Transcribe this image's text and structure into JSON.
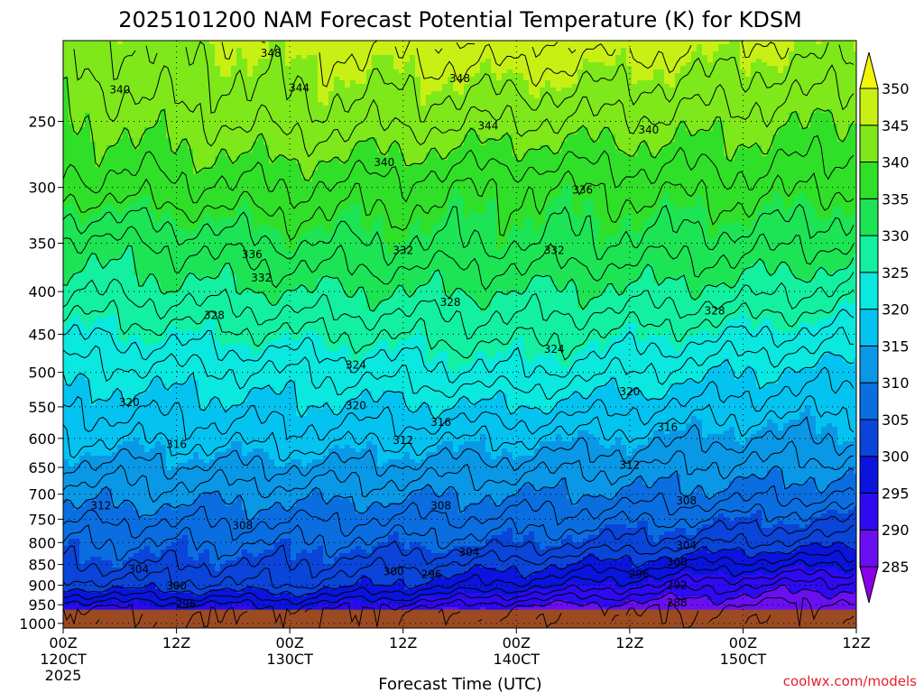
{
  "chart_data": {
    "type": "contour",
    "title": "2025101200 NAM Forecast Potential Temperature (K) for KDSM",
    "xlabel": "Forecast Time (UTC)",
    "ylabel": "",
    "x_ticks": [
      {
        "hour": 0,
        "lines": [
          "00Z",
          "120CT",
          "2025"
        ]
      },
      {
        "hour": 12,
        "lines": [
          "12Z"
        ]
      },
      {
        "hour": 24,
        "lines": [
          "00Z",
          "130CT"
        ]
      },
      {
        "hour": 36,
        "lines": [
          "12Z"
        ]
      },
      {
        "hour": 48,
        "lines": [
          "00Z",
          "140CT"
        ]
      },
      {
        "hour": 60,
        "lines": [
          "12Z"
        ]
      },
      {
        "hour": 72,
        "lines": [
          "00Z",
          "150CT"
        ]
      },
      {
        "hour": 84,
        "lines": [
          "12Z"
        ]
      }
    ],
    "x_range_hours": [
      0,
      84
    ],
    "y_ticks": [
      250,
      300,
      350,
      400,
      450,
      500,
      550,
      600,
      650,
      700,
      750,
      800,
      850,
      900,
      950,
      1000
    ],
    "y_range_hPa": [
      200,
      1013
    ],
    "y_axis_scale": "log-pressure (inverted)",
    "surface_pressure_hPa": 963,
    "grid": true,
    "colorbar": {
      "levels": [
        285,
        290,
        295,
        300,
        305,
        310,
        315,
        320,
        325,
        330,
        335,
        340,
        345,
        350
      ],
      "colors": [
        "#8a00e6",
        "#6a0ff0",
        "#2d0af0",
        "#0a14dc",
        "#0a44d8",
        "#0a6ee0",
        "#0a98e6",
        "#04c3f0",
        "#0ae8e0",
        "#12f0a0",
        "#1ce454",
        "#30e028",
        "#7ee81a",
        "#c8f014",
        "#f4f408"
      ],
      "placement": "right"
    },
    "contour_labels": [
      "348",
      "344",
      "340",
      "336",
      "332",
      "328",
      "324",
      "320",
      "316",
      "312",
      "308",
      "304",
      "300",
      "296",
      "292",
      "288"
    ],
    "theta_profiles": [
      {
        "hour": 0,
        "points": [
          [
            963,
            293
          ],
          [
            900,
            301
          ],
          [
            850,
            304
          ],
          [
            800,
            306
          ],
          [
            700,
            311
          ],
          [
            600,
            316
          ],
          [
            500,
            321
          ],
          [
            400,
            328
          ],
          [
            350,
            331
          ],
          [
            300,
            337
          ],
          [
            250,
            340
          ],
          [
            200,
            343
          ]
        ]
      },
      {
        "hour": 24,
        "points": [
          [
            963,
            295
          ],
          [
            900,
            302
          ],
          [
            850,
            304
          ],
          [
            800,
            306
          ],
          [
            700,
            311
          ],
          [
            600,
            317
          ],
          [
            500,
            322
          ],
          [
            400,
            330
          ],
          [
            350,
            334
          ],
          [
            300,
            338
          ],
          [
            250,
            343
          ],
          [
            200,
            346
          ]
        ]
      },
      {
        "hour": 48,
        "points": [
          [
            963,
            289
          ],
          [
            900,
            297
          ],
          [
            850,
            301
          ],
          [
            800,
            305
          ],
          [
            700,
            310
          ],
          [
            600,
            316
          ],
          [
            500,
            324
          ],
          [
            400,
            330
          ],
          [
            350,
            334
          ],
          [
            300,
            336
          ],
          [
            250,
            342
          ],
          [
            200,
            348
          ]
        ]
      },
      {
        "hour": 72,
        "points": [
          [
            963,
            287
          ],
          [
            900,
            292
          ],
          [
            850,
            297
          ],
          [
            800,
            302
          ],
          [
            700,
            309
          ],
          [
            600,
            314
          ],
          [
            500,
            320
          ],
          [
            400,
            329
          ],
          [
            350,
            333
          ],
          [
            300,
            337
          ],
          [
            250,
            341
          ],
          [
            200,
            346
          ]
        ]
      },
      {
        "hour": 84,
        "points": [
          [
            963,
            286
          ],
          [
            900,
            291
          ],
          [
            850,
            296
          ],
          [
            800,
            301
          ],
          [
            700,
            308
          ],
          [
            600,
            314
          ],
          [
            500,
            319
          ],
          [
            400,
            327
          ],
          [
            350,
            332
          ],
          [
            300,
            336
          ],
          [
            250,
            340
          ],
          [
            200,
            345
          ]
        ]
      }
    ],
    "contour_label_positions": [
      {
        "text": "348",
        "hour": 22,
        "p": 207
      },
      {
        "text": "348",
        "hour": 42,
        "p": 222
      },
      {
        "text": "344",
        "hour": 25,
        "p": 228
      },
      {
        "text": "344",
        "hour": 45,
        "p": 253
      },
      {
        "text": "340",
        "hour": 6,
        "p": 229
      },
      {
        "text": "340",
        "hour": 34,
        "p": 280
      },
      {
        "text": "340",
        "hour": 62,
        "p": 256
      },
      {
        "text": "336",
        "hour": 20,
        "p": 361
      },
      {
        "text": "336",
        "hour": 55,
        "p": 302
      },
      {
        "text": "332",
        "hour": 21,
        "p": 385
      },
      {
        "text": "332",
        "hour": 36,
        "p": 357
      },
      {
        "text": "332",
        "hour": 52,
        "p": 357
      },
      {
        "text": "328",
        "hour": 16,
        "p": 427
      },
      {
        "text": "328",
        "hour": 41,
        "p": 412
      },
      {
        "text": "328",
        "hour": 69,
        "p": 422
      },
      {
        "text": "324",
        "hour": 31,
        "p": 490
      },
      {
        "text": "324",
        "hour": 52,
        "p": 469
      },
      {
        "text": "320",
        "hour": 7,
        "p": 543
      },
      {
        "text": "320",
        "hour": 31,
        "p": 548
      },
      {
        "text": "320",
        "hour": 60,
        "p": 527
      },
      {
        "text": "316",
        "hour": 12,
        "p": 610
      },
      {
        "text": "316",
        "hour": 40,
        "p": 574
      },
      {
        "text": "316",
        "hour": 64,
        "p": 582
      },
      {
        "text": "312",
        "hour": 4,
        "p": 723
      },
      {
        "text": "312",
        "hour": 36,
        "p": 603
      },
      {
        "text": "312",
        "hour": 60,
        "p": 646
      },
      {
        "text": "308",
        "hour": 19,
        "p": 763
      },
      {
        "text": "308",
        "hour": 40,
        "p": 723
      },
      {
        "text": "308",
        "hour": 66,
        "p": 713
      },
      {
        "text": "304",
        "hour": 8,
        "p": 862
      },
      {
        "text": "304",
        "hour": 43,
        "p": 822
      },
      {
        "text": "304",
        "hour": 66,
        "p": 806
      },
      {
        "text": "300",
        "hour": 12,
        "p": 902
      },
      {
        "text": "300",
        "hour": 35,
        "p": 867
      },
      {
        "text": "300",
        "hour": 65,
        "p": 844
      },
      {
        "text": "296",
        "hour": 13,
        "p": 948
      },
      {
        "text": "296",
        "hour": 39,
        "p": 873
      },
      {
        "text": "296",
        "hour": 61,
        "p": 873
      },
      {
        "text": "292",
        "hour": 65,
        "p": 900
      },
      {
        "text": "288",
        "hour": 65,
        "p": 945
      }
    ]
  },
  "credit": "coolwx.com/models"
}
